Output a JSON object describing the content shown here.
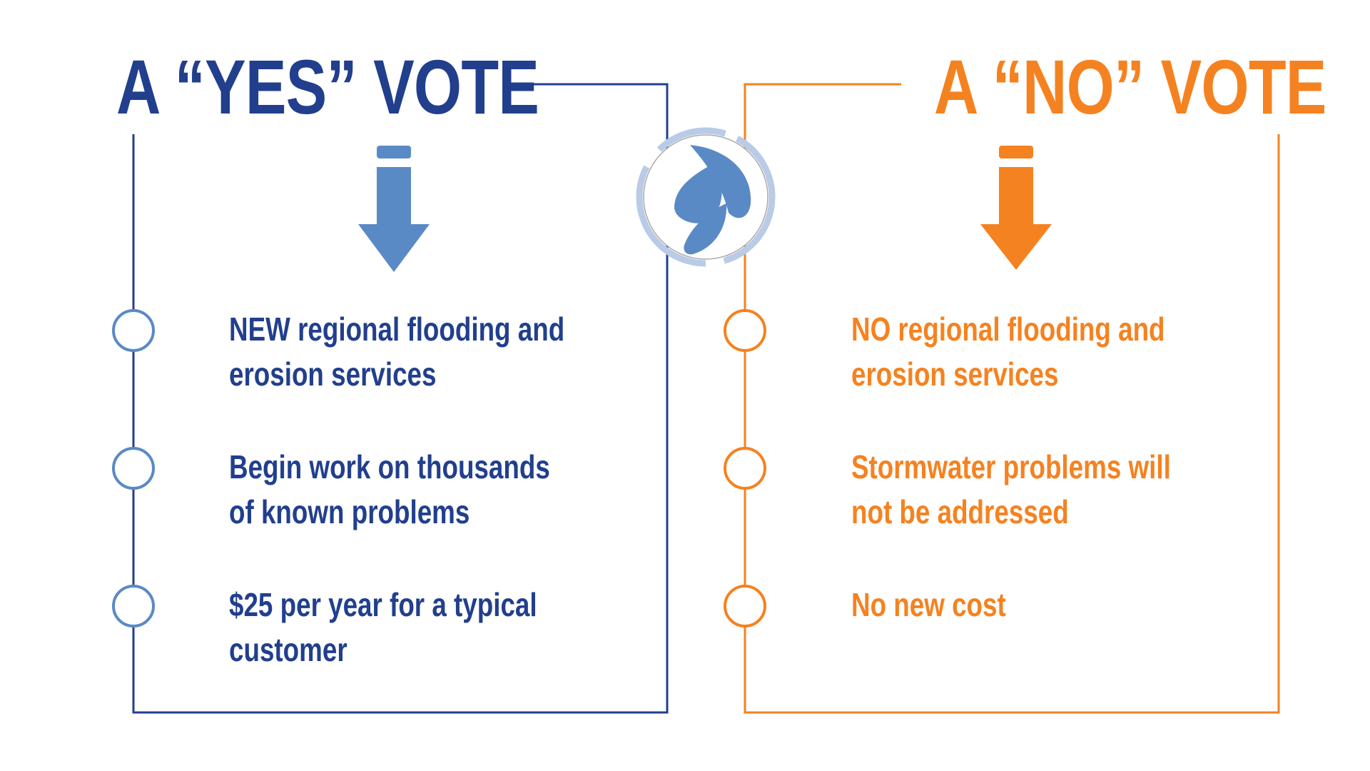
{
  "yes_panel": {
    "title": "A “YES” VOTE",
    "color": "#213f8d",
    "accent": "#5a8ac6",
    "items": [
      {
        "line1": "NEW regional flooding and",
        "line2": "erosion services"
      },
      {
        "line1": "Begin work on thousands",
        "line2": "of known problems"
      },
      {
        "line1": "$25 per year for a typical",
        "line2": "customer"
      }
    ]
  },
  "no_panel": {
    "title": "A “NO” VOTE",
    "color": "#f58220",
    "items": [
      {
        "line1": "NO regional flooding and",
        "line2": "erosion services"
      },
      {
        "line1": "Stormwater problems will",
        "line2": "not be addressed"
      },
      {
        "line1": "No new cost",
        "line2": ""
      }
    ]
  },
  "center_logo": {
    "icon": "water-drops-icon",
    "ring_color": "#b9cbe6",
    "drop_color": "#5a8ac6"
  }
}
